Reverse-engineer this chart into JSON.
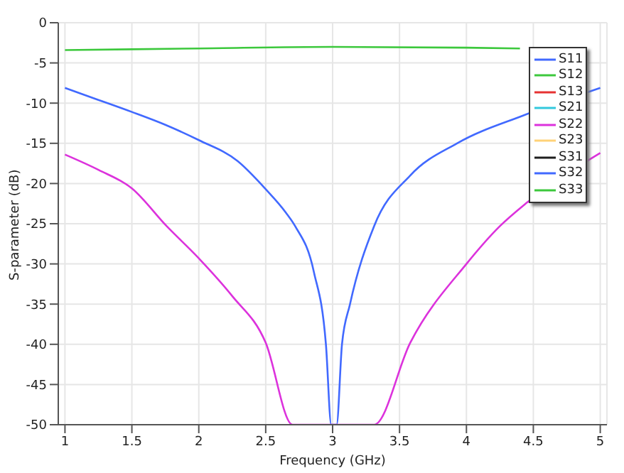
{
  "chart_data": {
    "type": "line",
    "xlabel": "Frequency (GHz)",
    "ylabel": "S-parameter (dB)",
    "xlim": [
      0.95,
      5.05
    ],
    "ylim": [
      -50,
      0
    ],
    "xticks": [
      1,
      1.5,
      2,
      2.5,
      3,
      3.5,
      4,
      4.5,
      5
    ],
    "yticks": [
      -50,
      -45,
      -40,
      -35,
      -30,
      -25,
      -20,
      -15,
      -10,
      -5,
      0
    ],
    "grid": true,
    "legend": "top right",
    "marker": "none",
    "line_style": "solid",
    "series": [
      {
        "name": "S11",
        "color": "#4169ff",
        "x": [
          1,
          1.25,
          1.5,
          1.75,
          2,
          2.29,
          2.5,
          2.65,
          2.72,
          2.86,
          2.95,
          2.99,
          3.03,
          3.07,
          3.13,
          3.31,
          3.58,
          3.93,
          4.43,
          5
        ],
        "values": [
          -8.1,
          -9.6,
          -11.1,
          -12.7,
          -14.6,
          -17.2,
          -20.7,
          -23.6,
          -25.3,
          -31,
          -40,
          -50,
          -50,
          -40,
          -35,
          -25.3,
          -19,
          -15,
          -11.5,
          -8.1
        ]
      },
      {
        "name": "S12",
        "color": "#3cc83c",
        "x": [
          1,
          2,
          3,
          4,
          4.4
        ],
        "values": [
          -3.4,
          -3.2,
          -3,
          -3.1,
          -3.2
        ]
      },
      {
        "name": "S13",
        "color": "#e63232"
      },
      {
        "name": "S21",
        "color": "#32c8dc"
      },
      {
        "name": "S22",
        "color": "#dc32dc",
        "x": [
          1,
          1.25,
          1.5,
          1.76,
          2,
          2.25,
          2.5,
          2.7,
          3.31,
          3.58,
          4,
          4.25,
          4.45,
          5
        ],
        "values": [
          -16.4,
          -18.3,
          -20.6,
          -25.3,
          -29.3,
          -34,
          -39.8,
          -50,
          -50,
          -39.8,
          -30,
          -25.3,
          -22.4,
          -16.2
        ]
      },
      {
        "name": "S23",
        "color": "#ffd278"
      },
      {
        "name": "S31",
        "color": "#1e1e1e"
      },
      {
        "name": "S32",
        "color": "#4169ff"
      },
      {
        "name": "S33",
        "color": "#3cc83c"
      }
    ]
  }
}
